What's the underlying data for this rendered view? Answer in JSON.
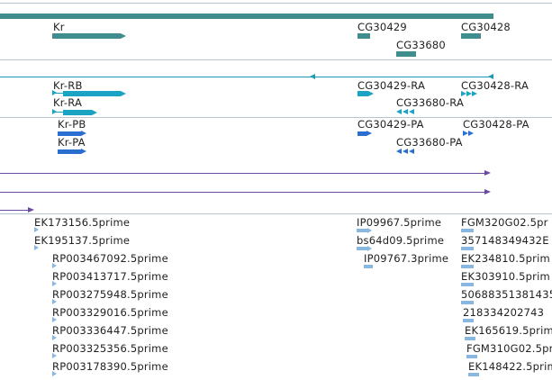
{
  "colors": {
    "gene": "#3f8d8d",
    "transcript": "#1aa3c2",
    "transcript_line": "#1f9ab5",
    "protein": "#2a6fcf",
    "purple": "#6a4aa0",
    "est": "#8ab7e0",
    "separator": "#b8c4cc"
  },
  "gene_track": {
    "labels": [
      "Kr",
      "CG30429",
      "CG30428",
      "CG33680"
    ]
  },
  "transcript_track": {
    "labels": [
      "Kr-RB",
      "Kr-RA",
      "CG30429-RA",
      "CG30428-RA",
      "CG33680-RA"
    ]
  },
  "protein_track": {
    "labels": [
      "Kr-PB",
      "Kr-PA",
      "CG30429-PA",
      "CG30428-PA",
      "CG33680-PA"
    ]
  },
  "est_track": {
    "left_col": [
      "EK173156.5prime",
      "EK195137.5prime"
    ],
    "mid_col": [
      "RP003467092.5prime",
      "RP003413717.5prime",
      "RP003275948.5prime",
      "RP003329016.5prime",
      "RP003336447.5prime",
      "RP003325356.5prime",
      "RP003178390.5prime"
    ],
    "right_a": [
      "IP09967.5prime",
      "bs64d09.5prime",
      "IP09767.3prime"
    ],
    "right_b": [
      "FGM320G02.5pr",
      "357148349432E",
      "EK234810.5prim",
      "EK303910.5prim",
      "50688351381435",
      "218334202743",
      "EK165619.5prim",
      "FGM310G02.5pr",
      "EK148422.5prim"
    ]
  }
}
